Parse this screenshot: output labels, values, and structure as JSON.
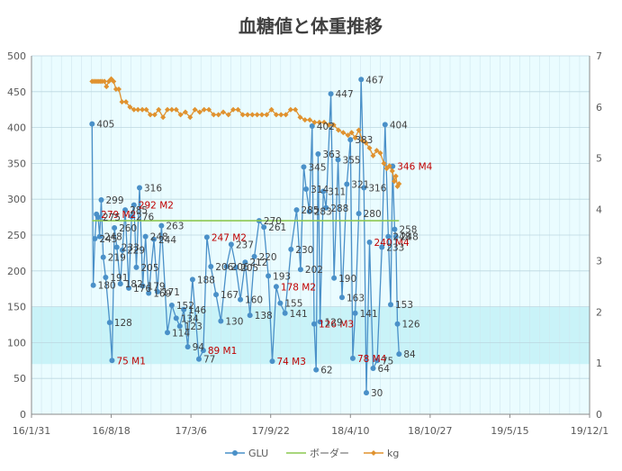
{
  "chart_data": {
    "type": "line",
    "title": "血糖値と体重推移",
    "x_axis": {
      "type": "date",
      "min": "2016-01-31",
      "max": "2019-12-01",
      "tick_labels": [
        "16/1/31",
        "16/8/18",
        "17/3/6",
        "17/9/22",
        "18/4/10",
        "18/10/27",
        "19/5/15",
        "19/12/1"
      ]
    },
    "y_axis_left": {
      "min": 0,
      "max": 500,
      "step": 50,
      "tick_labels": [
        "0",
        "50",
        "100",
        "150",
        "200",
        "250",
        "300",
        "350",
        "400",
        "450",
        "500"
      ]
    },
    "y_axis_right": {
      "min": 0,
      "max": 7,
      "step": 1,
      "tick_labels": [
        "0",
        "1",
        "2",
        "3",
        "4",
        "5",
        "6",
        "7"
      ]
    },
    "background_band": {
      "from": 70,
      "to": 150,
      "color": "#c9f3f8"
    },
    "plot_bg": "#eafcff",
    "grid": true,
    "legend_position": "bottom",
    "series": [
      {
        "name": "GLU",
        "axis": "left",
        "color": "#4a90c8",
        "points": [
          {
            "x": "2016-07-01",
            "y": 405,
            "label": "405"
          },
          {
            "x": "2016-07-04",
            "y": 180,
            "label": "180"
          },
          {
            "x": "2016-07-08",
            "y": 245,
            "label": "245"
          },
          {
            "x": "2016-07-12",
            "y": 279,
            "label": "279 M2",
            "red": true
          },
          {
            "x": "2016-07-16",
            "y": 275,
            "label": "275"
          },
          {
            "x": "2016-07-20",
            "y": 248,
            "label": "248"
          },
          {
            "x": "2016-07-24",
            "y": 299,
            "label": "299"
          },
          {
            "x": "2016-07-29",
            "y": 219,
            "label": "219"
          },
          {
            "x": "2016-08-04",
            "y": 191,
            "label": "191"
          },
          {
            "x": "2016-08-14",
            "y": 128,
            "label": "128"
          },
          {
            "x": "2016-08-20",
            "y": 75,
            "label": "75 M1",
            "red": true
          },
          {
            "x": "2016-08-26",
            "y": 260,
            "label": "260"
          },
          {
            "x": "2016-09-01",
            "y": 233,
            "label": "233"
          },
          {
            "x": "2016-09-10",
            "y": 182,
            "label": "182"
          },
          {
            "x": "2016-09-15",
            "y": 229,
            "label": "229"
          },
          {
            "x": "2016-09-22",
            "y": 285,
            "label": "285"
          },
          {
            "x": "2016-10-01",
            "y": 176,
            "label": "176"
          },
          {
            "x": "2016-10-08",
            "y": 276,
            "label": "276"
          },
          {
            "x": "2016-10-14",
            "y": 292,
            "label": "292 M2",
            "red": true
          },
          {
            "x": "2016-10-20",
            "y": 205,
            "label": "205"
          },
          {
            "x": "2016-10-28",
            "y": 316,
            "label": "316"
          },
          {
            "x": "2016-11-05",
            "y": 179,
            "label": "179"
          },
          {
            "x": "2016-11-12",
            "y": 248,
            "label": "248"
          },
          {
            "x": "2016-11-20",
            "y": 169,
            "label": "169"
          },
          {
            "x": "2016-12-03",
            "y": 244,
            "label": "244"
          },
          {
            "x": "2016-12-12",
            "y": 171,
            "label": "171"
          },
          {
            "x": "2016-12-22",
            "y": 263,
            "label": "263"
          },
          {
            "x": "2017-01-06",
            "y": 114,
            "label": "114"
          },
          {
            "x": "2017-01-17",
            "y": 152,
            "label": "152"
          },
          {
            "x": "2017-01-28",
            "y": 134,
            "label": "134"
          },
          {
            "x": "2017-02-06",
            "y": 123,
            "label": "123"
          },
          {
            "x": "2017-02-16",
            "y": 146,
            "label": "146"
          },
          {
            "x": "2017-02-26",
            "y": 94,
            "label": "94"
          },
          {
            "x": "2017-03-10",
            "y": 188,
            "label": "188"
          },
          {
            "x": "2017-03-26",
            "y": 77,
            "label": "77"
          },
          {
            "x": "2017-04-06",
            "y": 89,
            "label": "89 M1",
            "red": true
          },
          {
            "x": "2017-04-15",
            "y": 247,
            "label": "247 M2",
            "red": true
          },
          {
            "x": "2017-04-25",
            "y": 206,
            "label": "206"
          },
          {
            "x": "2017-05-08",
            "y": 167,
            "label": "167"
          },
          {
            "x": "2017-05-20",
            "y": 130,
            "label": "130"
          },
          {
            "x": "2017-06-03",
            "y": 206,
            "label": "206"
          },
          {
            "x": "2017-06-15",
            "y": 237,
            "label": "237"
          },
          {
            "x": "2017-06-27",
            "y": 205,
            "label": "205"
          },
          {
            "x": "2017-07-08",
            "y": 160,
            "label": "160"
          },
          {
            "x": "2017-07-20",
            "y": 212,
            "label": "212"
          },
          {
            "x": "2017-08-01",
            "y": 138,
            "label": "138"
          },
          {
            "x": "2017-08-12",
            "y": 220,
            "label": "220"
          },
          {
            "x": "2017-08-24",
            "y": 270,
            "label": "270"
          },
          {
            "x": "2017-09-05",
            "y": 261,
            "label": "261"
          },
          {
            "x": "2017-09-16",
            "y": 193,
            "label": "193"
          },
          {
            "x": "2017-09-26",
            "y": 74,
            "label": "74 M3",
            "red": true
          },
          {
            "x": "2017-10-06",
            "y": 178,
            "label": "178 M2",
            "red": true
          },
          {
            "x": "2017-10-16",
            "y": 155,
            "label": "155"
          },
          {
            "x": "2017-10-28",
            "y": 141,
            "label": "141"
          },
          {
            "x": "2017-11-12",
            "y": 230,
            "label": "230"
          },
          {
            "x": "2017-11-26",
            "y": 285,
            "label": "285"
          },
          {
            "x": "2017-12-06",
            "y": 202,
            "label": "202"
          },
          {
            "x": "2017-12-14",
            "y": 345,
            "label": "345"
          },
          {
            "x": "2017-12-20",
            "y": 314,
            "label": "314"
          },
          {
            "x": "2017-12-28",
            "y": 283,
            "label": "283"
          },
          {
            "x": "2018-01-04",
            "y": 402,
            "label": "402"
          },
          {
            "x": "2018-01-09",
            "y": 126,
            "label": "126 M3",
            "red": true
          },
          {
            "x": "2018-01-14",
            "y": 62,
            "label": "62"
          },
          {
            "x": "2018-01-19",
            "y": 363,
            "label": "363"
          },
          {
            "x": "2018-01-24",
            "y": 129,
            "label": "129"
          },
          {
            "x": "2018-02-01",
            "y": 311,
            "label": "311"
          },
          {
            "x": "2018-02-08",
            "y": 288,
            "label": "288"
          },
          {
            "x": "2018-02-20",
            "y": 447,
            "label": "447"
          },
          {
            "x": "2018-02-28",
            "y": 190,
            "label": "190"
          },
          {
            "x": "2018-03-10",
            "y": 355,
            "label": "355"
          },
          {
            "x": "2018-03-20",
            "y": 163,
            "label": "163"
          },
          {
            "x": "2018-04-01",
            "y": 321,
            "label": "321"
          },
          {
            "x": "2018-04-10",
            "y": 383,
            "label": "383"
          },
          {
            "x": "2018-04-16",
            "y": 78,
            "label": "78 M4",
            "red": true
          },
          {
            "x": "2018-04-22",
            "y": 141,
            "label": "141"
          },
          {
            "x": "2018-05-01",
            "y": 280,
            "label": "280"
          },
          {
            "x": "2018-05-07",
            "y": 467,
            "label": "467"
          },
          {
            "x": "2018-05-14",
            "y": 316,
            "label": "316"
          },
          {
            "x": "2018-05-20",
            "y": 30,
            "label": "30"
          },
          {
            "x": "2018-05-28",
            "y": 240,
            "label": "240 M4",
            "red": true
          },
          {
            "x": "2018-06-06",
            "y": 64,
            "label": "64"
          },
          {
            "x": "2018-06-16",
            "y": 75,
            "label": "75"
          },
          {
            "x": "2018-06-28",
            "y": 233,
            "label": "233"
          },
          {
            "x": "2018-07-06",
            "y": 404,
            "label": "404"
          },
          {
            "x": "2018-07-14",
            "y": 248,
            "label": "248"
          },
          {
            "x": "2018-07-20",
            "y": 153,
            "label": "153"
          },
          {
            "x": "2018-07-25",
            "y": 346,
            "label": "346 M4",
            "red": true
          },
          {
            "x": "2018-07-30",
            "y": 258,
            "label": "258"
          },
          {
            "x": "2018-08-02",
            "y": 248,
            "label": "248"
          },
          {
            "x": "2018-08-06",
            "y": 126,
            "label": "126"
          },
          {
            "x": "2018-08-10",
            "y": 84,
            "label": "84"
          }
        ]
      },
      {
        "name": "ボーダー",
        "axis": "left",
        "color": "#8cc850",
        "points": [
          {
            "x": "2016-07-01",
            "y": 270
          },
          {
            "x": "2018-08-10",
            "y": 270
          }
        ]
      },
      {
        "name": "kg",
        "axis": "right",
        "color": "#e0922f",
        "points": [
          {
            "x": "2016-07-01",
            "y": 6.5
          },
          {
            "x": "2016-07-06",
            "y": 6.5
          },
          {
            "x": "2016-07-11",
            "y": 6.5
          },
          {
            "x": "2016-07-16",
            "y": 6.5
          },
          {
            "x": "2016-07-21",
            "y": 6.5
          },
          {
            "x": "2016-07-26",
            "y": 6.5
          },
          {
            "x": "2016-08-01",
            "y": 6.5
          },
          {
            "x": "2016-08-06",
            "y": 6.4
          },
          {
            "x": "2016-08-12",
            "y": 6.5
          },
          {
            "x": "2016-08-18",
            "y": 6.55
          },
          {
            "x": "2016-08-24",
            "y": 6.5
          },
          {
            "x": "2016-08-30",
            "y": 6.35
          },
          {
            "x": "2016-09-06",
            "y": 6.35
          },
          {
            "x": "2016-09-14",
            "y": 6.1
          },
          {
            "x": "2016-09-24",
            "y": 6.1
          },
          {
            "x": "2016-10-04",
            "y": 6.0
          },
          {
            "x": "2016-10-14",
            "y": 5.95
          },
          {
            "x": "2016-10-24",
            "y": 5.95
          },
          {
            "x": "2016-11-04",
            "y": 5.95
          },
          {
            "x": "2016-11-14",
            "y": 5.95
          },
          {
            "x": "2016-11-24",
            "y": 5.85
          },
          {
            "x": "2016-12-05",
            "y": 5.85
          },
          {
            "x": "2016-12-15",
            "y": 5.95
          },
          {
            "x": "2016-12-26",
            "y": 5.8
          },
          {
            "x": "2017-01-06",
            "y": 5.95
          },
          {
            "x": "2017-01-17",
            "y": 5.95
          },
          {
            "x": "2017-01-28",
            "y": 5.95
          },
          {
            "x": "2017-02-08",
            "y": 5.85
          },
          {
            "x": "2017-02-20",
            "y": 5.9
          },
          {
            "x": "2017-03-04",
            "y": 5.8
          },
          {
            "x": "2017-03-16",
            "y": 5.95
          },
          {
            "x": "2017-03-28",
            "y": 5.9
          },
          {
            "x": "2017-04-08",
            "y": 5.95
          },
          {
            "x": "2017-04-20",
            "y": 5.95
          },
          {
            "x": "2017-05-02",
            "y": 5.85
          },
          {
            "x": "2017-05-14",
            "y": 5.85
          },
          {
            "x": "2017-05-26",
            "y": 5.9
          },
          {
            "x": "2017-06-08",
            "y": 5.85
          },
          {
            "x": "2017-06-20",
            "y": 5.95
          },
          {
            "x": "2017-07-02",
            "y": 5.95
          },
          {
            "x": "2017-07-14",
            "y": 5.85
          },
          {
            "x": "2017-07-26",
            "y": 5.85
          },
          {
            "x": "2017-08-07",
            "y": 5.85
          },
          {
            "x": "2017-08-19",
            "y": 5.85
          },
          {
            "x": "2017-08-31",
            "y": 5.85
          },
          {
            "x": "2017-09-12",
            "y": 5.85
          },
          {
            "x": "2017-09-24",
            "y": 5.95
          },
          {
            "x": "2017-10-06",
            "y": 5.85
          },
          {
            "x": "2017-10-18",
            "y": 5.85
          },
          {
            "x": "2017-10-30",
            "y": 5.85
          },
          {
            "x": "2017-11-11",
            "y": 5.95
          },
          {
            "x": "2017-11-23",
            "y": 5.95
          },
          {
            "x": "2017-12-05",
            "y": 5.8
          },
          {
            "x": "2017-12-17",
            "y": 5.75
          },
          {
            "x": "2017-12-29",
            "y": 5.75
          },
          {
            "x": "2018-01-10",
            "y": 5.7
          },
          {
            "x": "2018-01-22",
            "y": 5.7
          },
          {
            "x": "2018-02-03",
            "y": 5.7
          },
          {
            "x": "2018-02-15",
            "y": 5.65
          },
          {
            "x": "2018-02-27",
            "y": 5.65
          },
          {
            "x": "2018-03-11",
            "y": 5.55
          },
          {
            "x": "2018-03-23",
            "y": 5.5
          },
          {
            "x": "2018-04-04",
            "y": 5.45
          },
          {
            "x": "2018-04-13",
            "y": 5.5
          },
          {
            "x": "2018-04-22",
            "y": 5.4
          },
          {
            "x": "2018-05-01",
            "y": 5.55
          },
          {
            "x": "2018-05-10",
            "y": 5.35
          },
          {
            "x": "2018-05-19",
            "y": 5.3
          },
          {
            "x": "2018-05-28",
            "y": 5.2
          },
          {
            "x": "2018-06-06",
            "y": 5.05
          },
          {
            "x": "2018-06-15",
            "y": 5.15
          },
          {
            "x": "2018-06-24",
            "y": 5.1
          },
          {
            "x": "2018-07-03",
            "y": 4.9
          },
          {
            "x": "2018-07-10",
            "y": 4.8
          },
          {
            "x": "2018-07-17",
            "y": 4.85
          },
          {
            "x": "2018-07-24",
            "y": 4.75
          },
          {
            "x": "2018-07-29",
            "y": 4.55
          },
          {
            "x": "2018-08-02",
            "y": 4.65
          },
          {
            "x": "2018-08-06",
            "y": 4.45
          },
          {
            "x": "2018-08-10",
            "y": 4.5
          }
        ]
      }
    ]
  }
}
